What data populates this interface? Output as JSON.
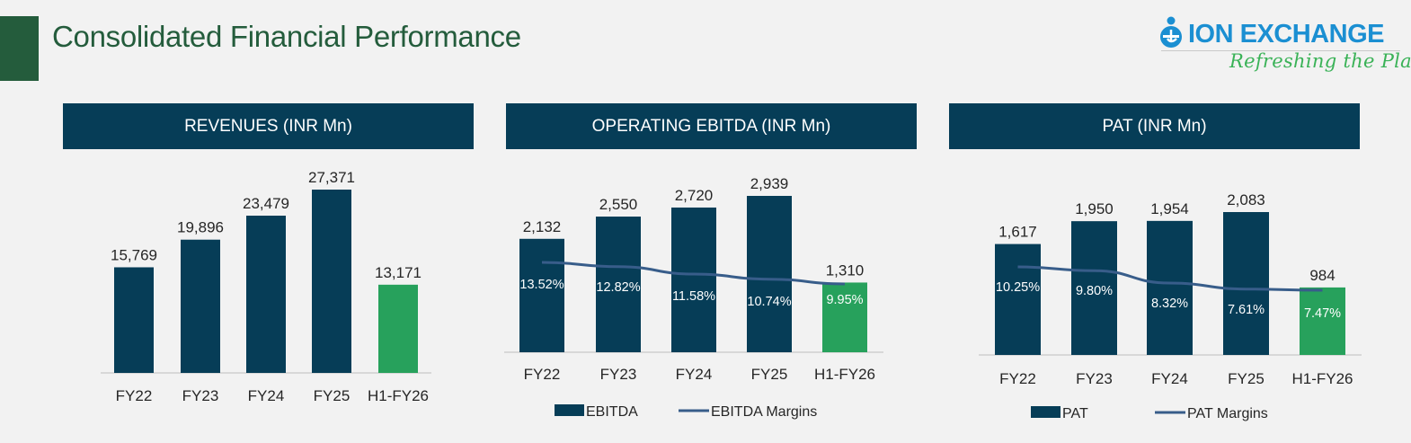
{
  "page": {
    "title": "Consolidated Financial Performance",
    "logo": {
      "brand": "ION EXCHANGE",
      "tagline": "Refreshing the Planet",
      "icon": "ion-exchange-e-icon"
    }
  },
  "colors": {
    "bar": "#063d57",
    "highlight_bar": "#27a15c",
    "line": "#385d8a",
    "header_bg": "#063d57",
    "title": "#245c3c"
  },
  "chart_data": [
    {
      "type": "bar",
      "title": "REVENUES (INR Mn)",
      "categories": [
        "FY22",
        "FY23",
        "FY24",
        "FY25",
        "H1-FY26"
      ],
      "values": [
        15769,
        19896,
        23479,
        27371,
        13171
      ],
      "value_labels": [
        "15,769",
        "19,896",
        "23,479",
        "27,371",
        "13,171"
      ],
      "highlight_index": 4,
      "xlabel": "",
      "ylabel": "",
      "ylim": [
        0,
        28000
      ],
      "grid": false,
      "legend": null
    },
    {
      "type": "bar+line",
      "title": "OPERATING EBITDA (INR Mn)",
      "categories": [
        "FY22",
        "FY23",
        "FY24",
        "FY25",
        "H1-FY26"
      ],
      "series": [
        {
          "name": "EBITDA",
          "type": "bar",
          "values": [
            2132,
            2550,
            2720,
            2939,
            1310
          ],
          "labels": [
            "2,132",
            "2,550",
            "2,720",
            "2,939",
            "1,310"
          ]
        },
        {
          "name": "EBITDA Margins",
          "type": "line",
          "values": [
            13.52,
            12.82,
            11.58,
            10.74,
            9.95
          ],
          "labels": [
            "13.52%",
            "12.82%",
            "11.58%",
            "10.74%",
            "9.95%"
          ]
        }
      ],
      "highlight_index": 4,
      "ylim": [
        0,
        3000
      ],
      "line_ylim": [
        0,
        20
      ],
      "grid": false,
      "legend": "bottom"
    },
    {
      "type": "bar+line",
      "title": "PAT (INR Mn)",
      "categories": [
        "FY22",
        "FY23",
        "FY24",
        "FY25",
        "H1-FY26"
      ],
      "series": [
        {
          "name": "PAT",
          "type": "bar",
          "values": [
            1617,
            1950,
            1954,
            2083,
            984
          ],
          "labels": [
            "1,617",
            "1,950",
            "1,954",
            "2,083",
            "984"
          ]
        },
        {
          "name": "PAT Margins",
          "type": "line",
          "values": [
            10.25,
            9.8,
            8.32,
            7.61,
            7.47
          ],
          "labels": [
            "10.25%",
            "9.80%",
            "8.32%",
            "7.61%",
            "7.47%"
          ]
        }
      ],
      "highlight_index": 4,
      "ylim": [
        0,
        2200
      ],
      "line_ylim": [
        0,
        15
      ],
      "grid": false,
      "legend": "bottom"
    }
  ]
}
